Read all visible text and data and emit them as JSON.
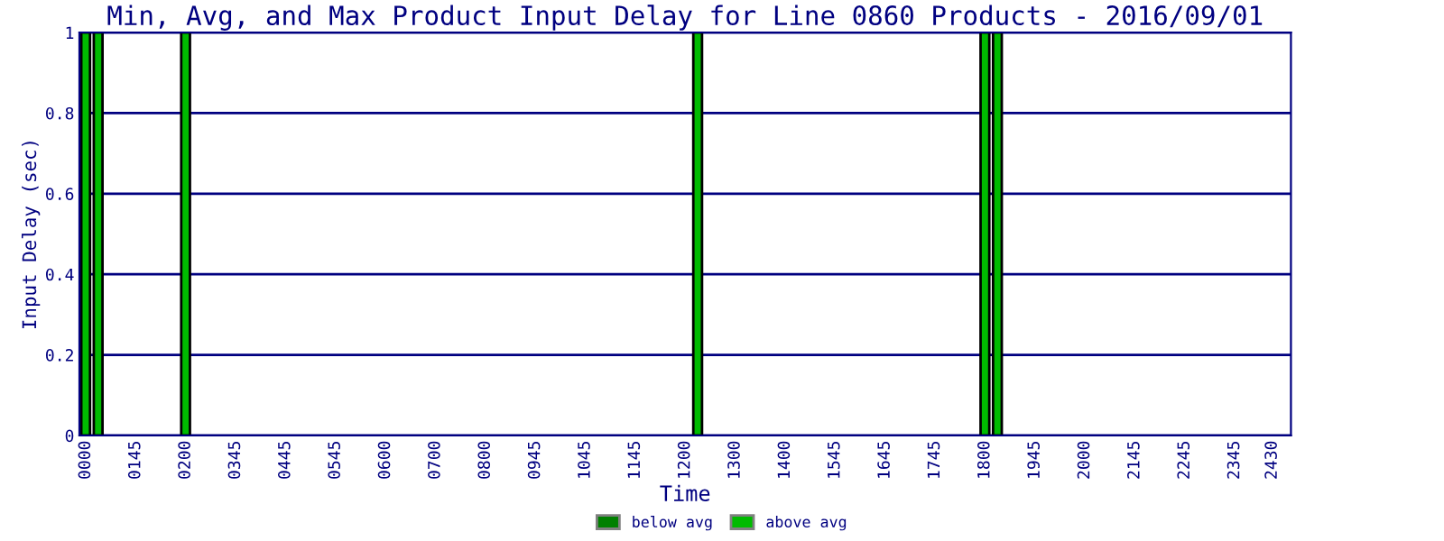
{
  "chart_data": {
    "type": "bar",
    "title": "Min, Avg, and Max Product Input Delay for Line 0860 Products - 2016/09/01",
    "xlabel": "Time",
    "ylabel": "Input Delay (sec)",
    "categories": [
      "0000",
      null,
      null,
      null,
      "0145",
      null,
      null,
      null,
      "0200",
      null,
      null,
      null,
      "0345",
      null,
      null,
      null,
      "0445",
      null,
      null,
      null,
      "0545",
      null,
      null,
      null,
      "0600",
      null,
      null,
      null,
      "0700",
      null,
      null,
      null,
      "0800",
      null,
      null,
      null,
      "0945",
      null,
      null,
      null,
      "1045",
      null,
      null,
      null,
      "1145",
      null,
      null,
      null,
      "1200",
      null,
      null,
      null,
      "1300",
      null,
      null,
      null,
      "1400",
      null,
      null,
      null,
      "1545",
      null,
      null,
      null,
      "1645",
      null,
      null,
      null,
      "1745",
      null,
      null,
      null,
      "1800",
      null,
      null,
      null,
      "1945",
      null,
      null,
      null,
      "2000",
      null,
      null,
      null,
      "2145",
      null,
      null,
      null,
      "2245",
      null,
      null,
      null,
      "2345",
      null,
      null,
      "2430",
      null
    ],
    "series": [
      {
        "name": "below avg",
        "color": "#008000",
        "values": [
          null,
          null,
          null,
          null,
          null,
          null,
          null,
          null,
          null,
          null,
          null,
          null,
          null,
          null,
          null,
          null,
          null,
          null,
          null,
          null,
          null,
          null,
          null,
          null,
          null,
          null,
          null,
          null,
          null,
          null,
          null,
          null,
          null,
          null,
          null,
          null,
          null,
          null,
          null,
          null,
          null,
          null,
          null,
          null,
          null,
          null,
          null,
          null,
          null,
          null,
          null,
          null,
          null,
          null,
          null,
          null,
          null,
          null,
          null,
          null,
          null,
          null,
          null,
          null,
          null,
          null,
          null,
          null,
          null,
          null,
          null,
          null,
          null,
          null,
          null,
          null,
          null,
          null,
          null,
          null,
          null,
          null,
          null,
          null,
          null,
          null,
          null,
          null,
          null,
          null,
          null,
          null,
          null,
          null,
          null,
          null,
          null
        ]
      },
      {
        "name": "above avg",
        "color": "#00bb00",
        "values": [
          1,
          1,
          null,
          null,
          null,
          null,
          null,
          null,
          1,
          null,
          null,
          null,
          null,
          null,
          null,
          null,
          null,
          null,
          null,
          null,
          null,
          null,
          null,
          null,
          null,
          null,
          null,
          null,
          null,
          null,
          null,
          null,
          null,
          null,
          null,
          null,
          null,
          null,
          null,
          null,
          null,
          null,
          null,
          null,
          null,
          null,
          null,
          null,
          null,
          1,
          null,
          null,
          null,
          null,
          null,
          null,
          null,
          null,
          null,
          null,
          null,
          null,
          null,
          null,
          null,
          null,
          null,
          null,
          null,
          null,
          null,
          null,
          1,
          1,
          null,
          null,
          null,
          null,
          null,
          null,
          null,
          null,
          null,
          null,
          null,
          null,
          null,
          null,
          null,
          null,
          null,
          null,
          null,
          null,
          null,
          null,
          null
        ]
      }
    ],
    "ylim": [
      0,
      1
    ],
    "yticks": [
      0,
      0.2,
      0.4,
      0.6,
      0.8,
      1
    ],
    "grid": "y",
    "legend": "bottom"
  }
}
